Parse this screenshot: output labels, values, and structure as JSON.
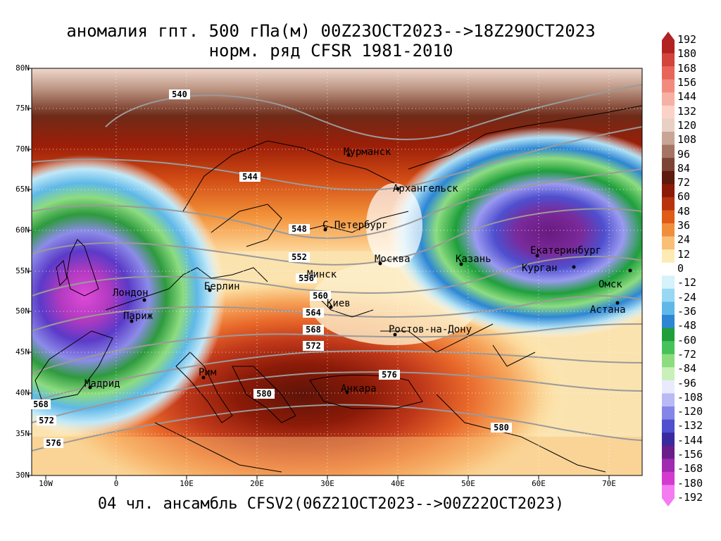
{
  "title_line1": "аномалия гпт. 500 гПа(м) 00Z23OCT2023-->18Z29OCT2023",
  "title_line2": "норм. ряд CFSR 1981-2010",
  "footer": "04 чл. ансамбль CFSV2(06Z21OCT2023-->00Z22OCT2023)",
  "lat_labels": [
    "80N",
    "75N",
    "70N",
    "65N",
    "60N",
    "55N",
    "50N",
    "45N",
    "40N",
    "35N",
    "30N"
  ],
  "lon_labels": [
    "10W",
    "0",
    "10E",
    "20E",
    "30E",
    "40E",
    "50E",
    "60E",
    "70E"
  ],
  "colorbar": {
    "labels": [
      "192",
      "180",
      "168",
      "156",
      "144",
      "132",
      "120",
      "108",
      "96",
      "84",
      "72",
      "60",
      "48",
      "36",
      "24",
      "12",
      "0",
      "-12",
      "-24",
      "-36",
      "-48",
      "-60",
      "-72",
      "-84",
      "-96",
      "-108",
      "-120",
      "-132",
      "-144",
      "-156",
      "-168",
      "-180",
      "-192"
    ],
    "colors": [
      "#b22222",
      "#d2443c",
      "#e8655a",
      "#f28b7e",
      "#f7b0a4",
      "#fbd2c8",
      "#e9cfc4",
      "#c9a596",
      "#a57564",
      "#7d4435",
      "#5e1a0d",
      "#8b1a08",
      "#b83210",
      "#e05a18",
      "#f08e3c",
      "#f9bf75",
      "#fdebb4",
      "#ffffff",
      "#d6f2fb",
      "#99d8f2",
      "#5fb8e8",
      "#2d86d4",
      "#1f9f3c",
      "#46c25a",
      "#8ddc80",
      "#c8f0b8",
      "#eaeaff",
      "#b9b9f5",
      "#8585e8",
      "#4f4fcf",
      "#3a2aa0",
      "#6a1e8a",
      "#a02ab0",
      "#d43ad0",
      "#f47cf0"
    ]
  },
  "cities": [
    {
      "name": "Мурманск"
    },
    {
      "name": "Архангельск"
    },
    {
      "name": "С.Петербург"
    },
    {
      "name": "Москва"
    },
    {
      "name": "Казань"
    },
    {
      "name": "Екатеринбург"
    },
    {
      "name": "Курган"
    },
    {
      "name": "Омск"
    },
    {
      "name": "Астана"
    },
    {
      "name": "Минск"
    },
    {
      "name": "Киев"
    },
    {
      "name": "Ростов-на-Дону"
    },
    {
      "name": "Берлин"
    },
    {
      "name": "Лондон"
    },
    {
      "name": "Париж"
    },
    {
      "name": "Рим"
    },
    {
      "name": "Мадрид"
    },
    {
      "name": "Анкара"
    }
  ],
  "contour_labels": [
    "540",
    "544",
    "548",
    "552",
    "556",
    "560",
    "564",
    "568",
    "572",
    "576",
    "580",
    "568",
    "572",
    "576",
    "580",
    "580",
    "576"
  ]
}
